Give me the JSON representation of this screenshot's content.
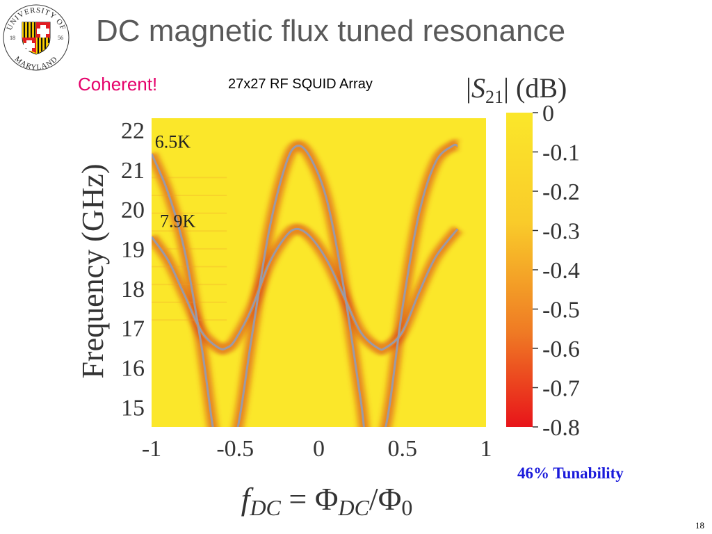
{
  "slide": {
    "title": "DC magnetic flux tuned resonance",
    "note_left": "Coherent!",
    "subtitle": "27x27 RF SQUID Array",
    "tunability": "46% Tunability",
    "page_number": "18"
  },
  "logo": {
    "text_top": "UNIVERSITY OF",
    "text_bottom": "MARYLAND",
    "year_left": "18",
    "year_right": "56"
  },
  "colors": {
    "background": "#fbe72a",
    "resonance": "#d63a1a",
    "fit_curve": "#9a9aa6",
    "colorbar_top": "#fbe72a",
    "colorbar_bottom": "#e8141a",
    "title": "#595959",
    "coherent": "#e5006a",
    "tunability": "#1a1adb"
  },
  "chart_data": {
    "type": "heatmap",
    "xlabel": "f_DC = Φ_DC/Φ_0",
    "ylabel": "Frequency (GHz)",
    "xlim": [
      -1,
      1
    ],
    "ylim": [
      14.5,
      22.3
    ],
    "x_ticks": [
      "-1",
      "-0.5",
      "0",
      "0.5",
      "1"
    ],
    "y_ticks": [
      "15",
      "16",
      "17",
      "18",
      "19",
      "20",
      "21",
      "22"
    ],
    "colorbar": {
      "label": "|S21| (dB)",
      "min": -0.8,
      "max": 0,
      "ticks": [
        "0",
        "-0.1",
        "-0.2",
        "-0.3",
        "-0.4",
        "-0.5",
        "-0.6",
        "-0.7",
        "-0.8"
      ]
    },
    "series": [
      {
        "name": "6.5K",
        "x": [
          -1.0,
          -0.9,
          -0.8,
          -0.7,
          -0.6,
          -0.5,
          -0.4,
          -0.3,
          -0.2,
          -0.13,
          -0.05,
          0.05,
          0.15,
          0.25,
          0.3,
          0.4,
          0.5,
          0.6,
          0.7,
          0.8,
          0.83
        ],
        "y": [
          21.4,
          20.4,
          18.9,
          16.5,
          13.8,
          14.2,
          16.8,
          19.4,
          21.1,
          21.6,
          21.3,
          20.2,
          18.0,
          15.2,
          13.8,
          14.5,
          17.5,
          19.9,
          21.2,
          21.6,
          21.6
        ]
      },
      {
        "name": "7.9K",
        "x": [
          -1.0,
          -0.9,
          -0.8,
          -0.7,
          -0.6,
          -0.55,
          -0.5,
          -0.4,
          -0.3,
          -0.2,
          -0.13,
          -0.05,
          0.05,
          0.15,
          0.25,
          0.35,
          0.4,
          0.5,
          0.6,
          0.7,
          0.83
        ],
        "y": [
          19.3,
          18.7,
          17.8,
          16.9,
          16.5,
          16.5,
          16.7,
          17.5,
          18.6,
          19.3,
          19.5,
          19.3,
          18.7,
          17.8,
          16.9,
          16.5,
          16.5,
          16.9,
          17.9,
          18.8,
          19.5
        ]
      }
    ]
  }
}
